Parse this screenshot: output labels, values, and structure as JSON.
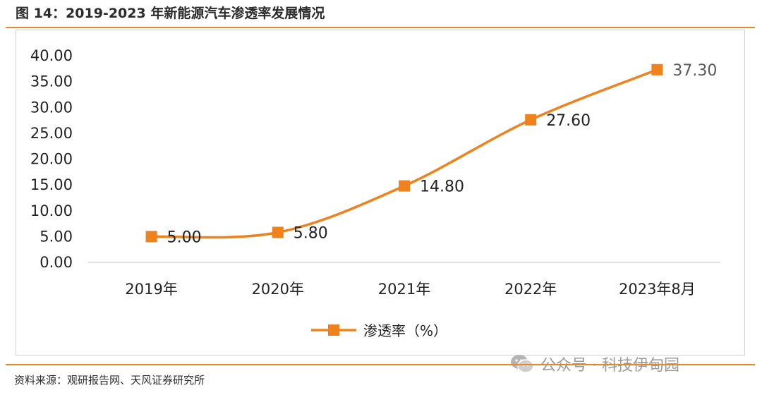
{
  "figure": {
    "title": "图 14：2019-2023 年新能源汽车渗透率发展情况",
    "source": "资料来源：观研报告网、天风证券研究所",
    "watermark": "公众号 · 科技伊甸园",
    "watermark_icon": "wechat-icon"
  },
  "colors": {
    "accent": "#f0821e",
    "rule": "#e8862c",
    "axis": "#d9d9d9",
    "text": "#222222",
    "last_label": "#595959"
  },
  "chart_data": {
    "type": "line",
    "title": "",
    "xlabel": "",
    "ylabel": "",
    "categories": [
      "2019年",
      "2020年",
      "2021年",
      "2022年",
      "2023年8月"
    ],
    "series": [
      {
        "name": "渗透率（%）",
        "values": [
          5.0,
          5.8,
          14.8,
          27.6,
          37.3
        ],
        "labels": [
          "5.00",
          "5.80",
          "14.80",
          "27.60",
          "37.30"
        ],
        "smooth": true,
        "marker": "square"
      }
    ],
    "ylim": [
      0,
      40
    ],
    "yticks": [
      "0.00",
      "5.00",
      "10.00",
      "15.00",
      "20.00",
      "25.00",
      "30.00",
      "35.00",
      "40.00"
    ],
    "grid": false,
    "legend": "bottom-center"
  }
}
